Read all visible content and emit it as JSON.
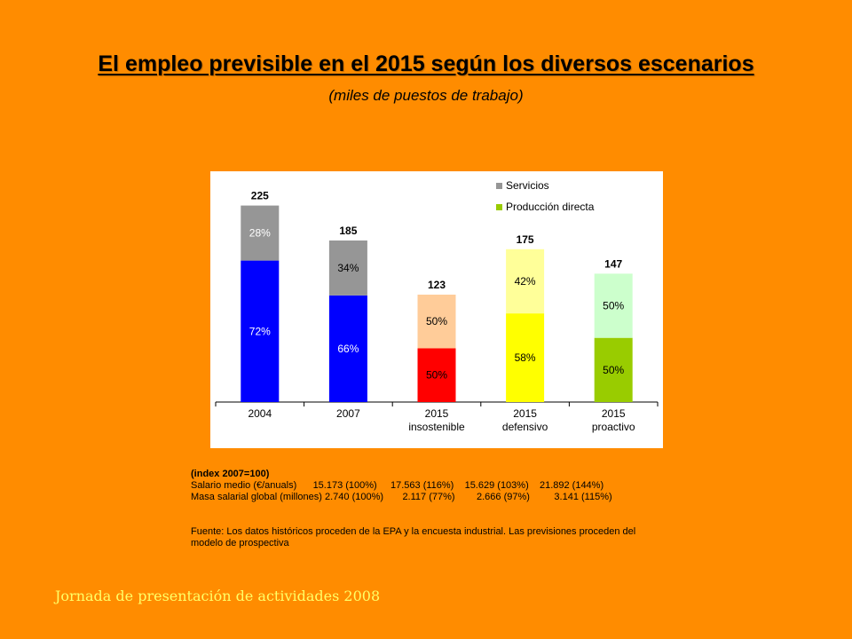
{
  "slide": {
    "title": "El empleo previsible en el 2015 según los diversos escenarios",
    "subtitle": "(miles de  puestos de trabajo)",
    "footer": "Jornada de presentación de actividades 2008"
  },
  "chart_data": {
    "type": "bar",
    "stacked": true,
    "categories": [
      [
        "2004"
      ],
      [
        "2007"
      ],
      [
        "2015",
        "insostenible"
      ],
      [
        "2015",
        "defensivo"
      ],
      [
        "2015",
        "proactivo"
      ]
    ],
    "totals": [
      225,
      185,
      123,
      175,
      147
    ],
    "total_labels": [
      "225",
      "185",
      "123",
      "175",
      "147"
    ],
    "series": [
      {
        "name": "Producción directa",
        "percent_labels": [
          "72%",
          "66%",
          "50%",
          "58%",
          "50%"
        ],
        "shares": [
          0.72,
          0.66,
          0.5,
          0.58,
          0.5
        ],
        "colors": [
          "#0000FF",
          "#0000FF",
          "#FF0000",
          "#FFFF00",
          "#99CC00"
        ]
      },
      {
        "name": "Servicios",
        "percent_labels": [
          "28%",
          "34%",
          "50%",
          "42%",
          "50%"
        ],
        "shares": [
          0.28,
          0.34,
          0.5,
          0.42,
          0.5
        ],
        "colors": [
          "#969696",
          "#969696",
          "#FFCC99",
          "#FFFF99",
          "#CCFFCC"
        ]
      }
    ],
    "percent_label_colors": {
      "Producción directa": [
        "#FFFFFF",
        "#FFFFFF",
        "#000000",
        "#000000",
        "#000000"
      ],
      "Servicios": [
        "#FFFFFF",
        "#000000",
        "#000000",
        "#000000",
        "#000000"
      ]
    },
    "legend": {
      "position": "top-right",
      "entries": [
        {
          "label": "Servicios",
          "color": "#969696"
        },
        {
          "label": "Producción directa",
          "color": "#99CC00"
        }
      ]
    },
    "ylim": [
      0,
      250
    ],
    "grid": false
  },
  "notes": {
    "index_label": "(index 2007=100)",
    "salary_row": "Salario medio (€/anuals)      15.173 (100%)     17.563 (116%)    15.629 (103%)    21.892 (144%)",
    "mass_row": "Masa salarial global (millones) 2.740 (100%)       2.117 (77%)        2.666 (97%)         3.141 (115%)",
    "source_line1": "Fuente: Los datos históricos proceden de la EPA y la encuesta industrial. Las previsiones proceden del",
    "source_line2": "modelo de prospectiva"
  }
}
